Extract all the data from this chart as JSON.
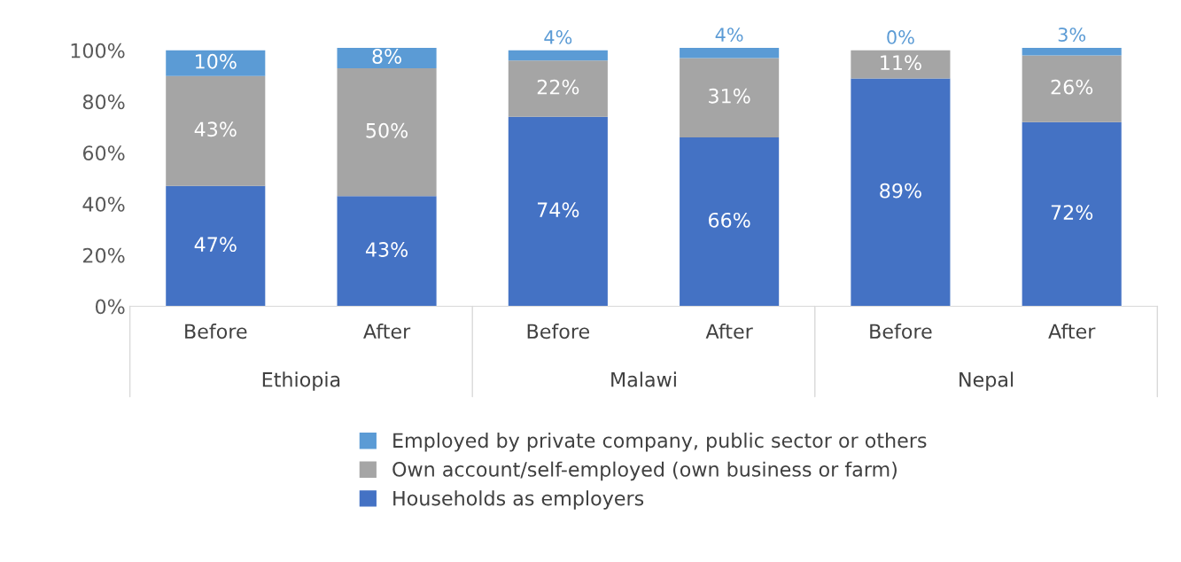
{
  "chart_data": {
    "type": "bar",
    "stacked": true,
    "categories": [
      "Before",
      "After",
      "Before",
      "After",
      "Before",
      "After"
    ],
    "series": [
      {
        "name": "Households as employers",
        "color": "#4472c4",
        "values": [
          47,
          43,
          74,
          66,
          89,
          72
        ],
        "value_labels": [
          "47%",
          "43%",
          "74%",
          "66%",
          "89%",
          "72%"
        ]
      },
      {
        "name": "Own account/self-employed (own business or farm)",
        "color": "#a5a5a5",
        "values": [
          43,
          50,
          22,
          31,
          11,
          26
        ],
        "value_labels": [
          "43%",
          "50%",
          "22%",
          "31%",
          "11%",
          "26%"
        ]
      },
      {
        "name": "Employed by private company, public sector or others",
        "color": "#5b9bd5",
        "values": [
          10,
          8,
          4,
          4,
          0,
          3
        ],
        "value_labels": [
          "10%",
          "8%",
          "4%",
          "4%",
          "0%",
          "3%"
        ]
      }
    ],
    "ylim": [
      0,
      101
    ],
    "yticks": [
      {
        "value": 0,
        "label": "0%"
      },
      {
        "value": 20,
        "label": "20%"
      },
      {
        "value": 40,
        "label": "40%"
      },
      {
        "value": 60,
        "label": "60%"
      },
      {
        "value": 80,
        "label": "80%"
      },
      {
        "value": 100,
        "label": "100%"
      }
    ],
    "annotations": [
      "Ethiopia",
      "Malawi",
      "Nepal"
    ],
    "grid": false,
    "legend": "bottom"
  }
}
